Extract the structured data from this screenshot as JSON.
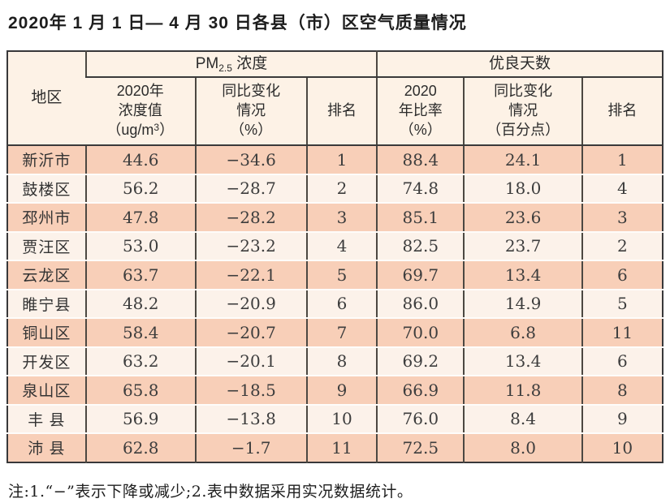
{
  "page": {
    "title": "2020年 1 月 1 日— 4 月 30 日各县（市）区空气质量情况",
    "note": "注:1.“−”表示下降或减少;2.表中数据采用实况数据统计。"
  },
  "colors": {
    "row_salmon": "#f8cfb8",
    "row_cream": "#fcf2ea",
    "header_bg": "#fdf2e6",
    "outer_border": "#38383a",
    "grid_line": "#4c4842",
    "text_dark": "#3d3d3d"
  },
  "table": {
    "header": {
      "region": "地区",
      "group_pm25": {
        "prefix": "PM",
        "sub": "2.5",
        "suffix": " 浓度"
      },
      "group_good_days": "优良天数",
      "pm25_value": {
        "line1": "2020年",
        "line2": "浓度值",
        "line3_pre": "（ug/m",
        "line3_sup": "3",
        "line3_post": "）"
      },
      "pm25_change": {
        "line1": "同比变化",
        "line2": "情况",
        "line3": "（%）"
      },
      "pm25_rank": "排名",
      "good_rate": {
        "line1": "2020",
        "line2": "年比率",
        "line3": "（%）"
      },
      "good_change": {
        "line1": "同比变化",
        "line2": "情况",
        "line3": "（百分点）"
      },
      "good_rank": "排名"
    },
    "rows": [
      {
        "region": "新沂市",
        "pm25": "44.6",
        "pm25_change": "−34.6",
        "pm25_rank": "1",
        "good_rate": "88.4",
        "good_change": "24.1",
        "good_rank": "1"
      },
      {
        "region": "鼓楼区",
        "pm25": "56.2",
        "pm25_change": "−28.7",
        "pm25_rank": "2",
        "good_rate": "74.8",
        "good_change": "18.0",
        "good_rank": "4"
      },
      {
        "region": "邳州市",
        "pm25": "47.8",
        "pm25_change": "−28.2",
        "pm25_rank": "3",
        "good_rate": "85.1",
        "good_change": "23.6",
        "good_rank": "3"
      },
      {
        "region": "贾汪区",
        "pm25": "53.0",
        "pm25_change": "−23.2",
        "pm25_rank": "4",
        "good_rate": "82.5",
        "good_change": "23.7",
        "good_rank": "2"
      },
      {
        "region": "云龙区",
        "pm25": "63.7",
        "pm25_change": "−22.1",
        "pm25_rank": "5",
        "good_rate": "69.7",
        "good_change": "13.4",
        "good_rank": "6"
      },
      {
        "region": "睢宁县",
        "pm25": "48.2",
        "pm25_change": "−20.9",
        "pm25_rank": "6",
        "good_rate": "86.0",
        "good_change": "14.9",
        "good_rank": "5"
      },
      {
        "region": "铜山区",
        "pm25": "58.4",
        "pm25_change": "−20.7",
        "pm25_rank": "7",
        "good_rate": "70.0",
        "good_change": "6.8",
        "good_rank": "11"
      },
      {
        "region": "开发区",
        "pm25": "63.2",
        "pm25_change": "−20.1",
        "pm25_rank": "8",
        "good_rate": "69.2",
        "good_change": "13.4",
        "good_rank": "6"
      },
      {
        "region": "泉山区",
        "pm25": "65.8",
        "pm25_change": "−18.5",
        "pm25_rank": "9",
        "good_rate": "66.9",
        "good_change": "11.8",
        "good_rank": "8"
      },
      {
        "region": "丰 县",
        "pm25": "56.9",
        "pm25_change": "−13.8",
        "pm25_rank": "10",
        "good_rate": "76.0",
        "good_change": "8.4",
        "good_rank": "9"
      },
      {
        "region": "沛 县",
        "pm25": "62.8",
        "pm25_change": "−1.7",
        "pm25_rank": "11",
        "good_rate": "72.5",
        "good_change": "8.0",
        "good_rank": "10"
      }
    ]
  }
}
